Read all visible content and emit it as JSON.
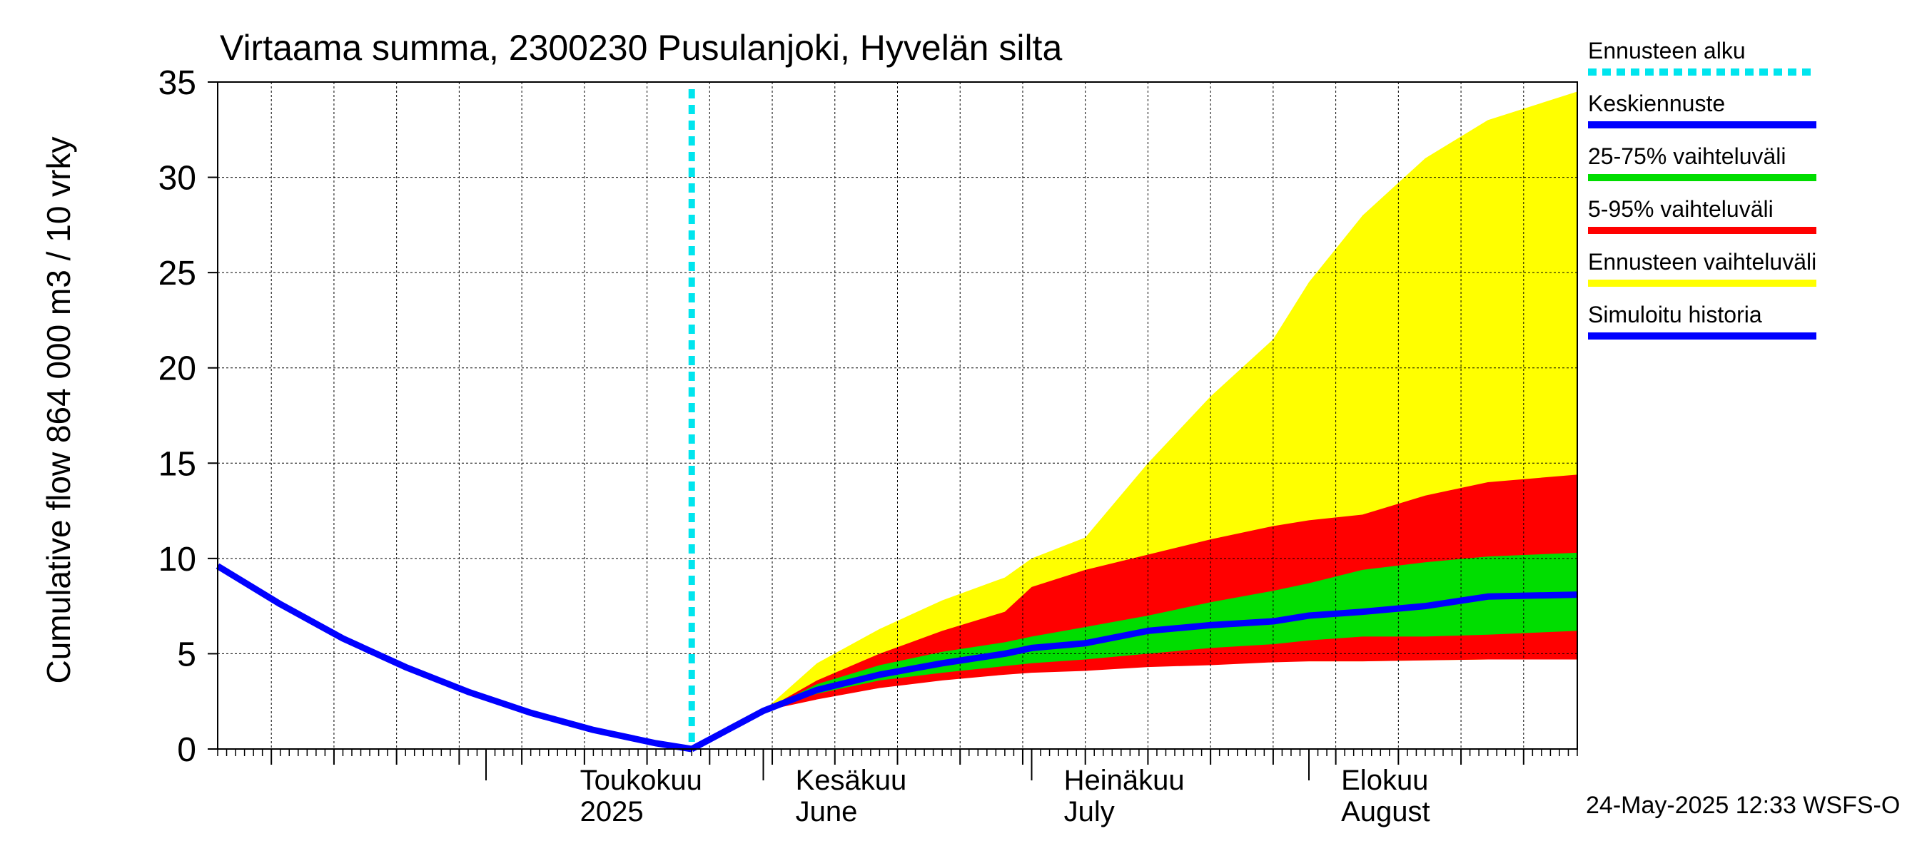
{
  "chart_data": {
    "type": "area",
    "title": "Virtaama summa, 2300230 Pusulanjoki, Hyvelän silta",
    "ylabel": "Cumulative flow     864 000 m3 / 10 vrky",
    "ylim": [
      0,
      35
    ],
    "yticks": [
      0,
      5,
      10,
      15,
      20,
      25,
      30,
      35
    ],
    "xlim": [
      "2025-04-01",
      "2025-08-31"
    ],
    "month_labels": [
      {
        "date": "2025-05-01",
        "fi": "Toukokuu",
        "en": "2025"
      },
      {
        "date": "2025-06-01",
        "fi": "Kesäkuu",
        "en": "June"
      },
      {
        "date": "2025-07-01",
        "fi": "Heinäkuu",
        "en": "July"
      },
      {
        "date": "2025-08-01",
        "fi": "Elokuu",
        "en": "August"
      }
    ],
    "forecast_start": "2025-05-24",
    "timestamp": "24-May-2025 12:33 WSFS-O",
    "legend": [
      {
        "label": "Ennusteen alku",
        "color": "#00e5ee",
        "style": "dotted"
      },
      {
        "label": "Keskiennuste",
        "color": "#0000ff",
        "style": "solid"
      },
      {
        "label": "25-75% vaihteluväli",
        "color": "#00dd00",
        "style": "solid"
      },
      {
        "label": "5-95% vaihteluväli",
        "color": "#ff0000",
        "style": "solid"
      },
      {
        "label": "Ennusteen vaihteluväli",
        "color": "#ffff00",
        "style": "solid"
      },
      {
        "label": "Simuloitu historia",
        "color": "#0000ff",
        "style": "solid"
      }
    ],
    "history": {
      "x": [
        "2025-04-01",
        "2025-04-08",
        "2025-04-15",
        "2025-04-22",
        "2025-04-29",
        "2025-05-06",
        "2025-05-13",
        "2025-05-20",
        "2025-05-24"
      ],
      "y": [
        9.6,
        7.6,
        5.8,
        4.3,
        3.0,
        1.9,
        1.0,
        0.3,
        0.0
      ]
    },
    "forecast_x": [
      "2025-05-24",
      "2025-06-01",
      "2025-06-07",
      "2025-06-14",
      "2025-06-21",
      "2025-06-28",
      "2025-07-01",
      "2025-07-07",
      "2025-07-14",
      "2025-07-21",
      "2025-07-28",
      "2025-08-01",
      "2025-08-07",
      "2025-08-14",
      "2025-08-21",
      "2025-08-31"
    ],
    "range_min": [
      0.0,
      2.0,
      2.7,
      3.3,
      3.7,
      3.95,
      4.1,
      4.2,
      4.35,
      4.5,
      4.6,
      4.6,
      4.6,
      4.65,
      4.7,
      4.7
    ],
    "range_max": [
      0.0,
      2.0,
      4.5,
      6.3,
      7.8,
      9.0,
      10.0,
      11.1,
      15.0,
      18.5,
      21.5,
      24.5,
      28.0,
      31.0,
      33.0,
      34.5
    ],
    "p5": [
      0.0,
      2.0,
      2.6,
      3.2,
      3.6,
      3.9,
      4.0,
      4.1,
      4.3,
      4.4,
      4.55,
      4.6,
      4.6,
      4.65,
      4.7,
      4.7
    ],
    "p95": [
      0.0,
      2.0,
      3.6,
      5.0,
      6.2,
      7.2,
      8.5,
      9.4,
      10.2,
      11.0,
      11.7,
      12.0,
      12.3,
      13.3,
      14.0,
      14.4
    ],
    "p25": [
      0.0,
      2.0,
      2.9,
      3.6,
      4.0,
      4.35,
      4.5,
      4.7,
      5.0,
      5.3,
      5.5,
      5.7,
      5.9,
      5.9,
      6.0,
      6.2
    ],
    "p75": [
      0.0,
      2.0,
      3.4,
      4.4,
      5.1,
      5.6,
      5.9,
      6.4,
      7.0,
      7.7,
      8.3,
      8.7,
      9.4,
      9.8,
      10.1,
      10.3
    ],
    "median": [
      0.0,
      2.0,
      3.1,
      3.9,
      4.5,
      5.0,
      5.3,
      5.55,
      6.2,
      6.5,
      6.7,
      7.0,
      7.2,
      7.5,
      8.0,
      8.1
    ]
  }
}
